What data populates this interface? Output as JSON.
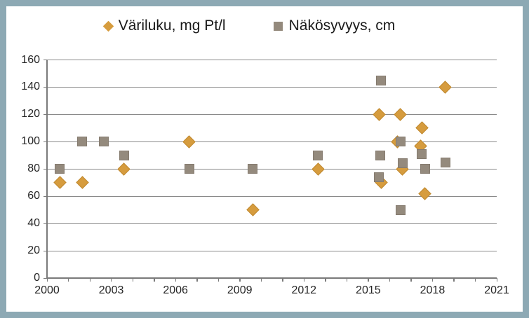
{
  "legend": {
    "items": [
      {
        "label": "Väriluku, mg Pt/l",
        "marker": "diamond",
        "color": "#D69C3E"
      },
      {
        "label": "Näkösyvyys, cm",
        "marker": "square",
        "color": "#948A7D"
      }
    ]
  },
  "axes": {
    "y_ticks": [
      {
        "label": "0",
        "value": 0
      },
      {
        "label": "20",
        "value": 20
      },
      {
        "label": "40",
        "value": 40
      },
      {
        "label": "60",
        "value": 60
      },
      {
        "label": "80",
        "value": 80
      },
      {
        "label": "100",
        "value": 100
      },
      {
        "label": "120",
        "value": 120
      },
      {
        "label": "140",
        "value": 140
      },
      {
        "label": "160",
        "value": 160
      }
    ],
    "x_ticks": [
      {
        "label": "2000",
        "year": 2000
      },
      {
        "label": "2003",
        "year": 2003
      },
      {
        "label": "2006",
        "year": 2006
      },
      {
        "label": "2009",
        "year": 2009
      },
      {
        "label": "2012",
        "year": 2012
      },
      {
        "label": "2015",
        "year": 2015
      },
      {
        "label": "2018",
        "year": 2018
      },
      {
        "label": "2021",
        "year": 2021
      }
    ],
    "x_minor_tick_step_years": 1
  },
  "colors": {
    "frame_border": "#8DA9B4",
    "background": "#FFFFFF",
    "grid_line": "#8A8A8A",
    "axis_line": "#7A7A7A",
    "tick_text": "#262626",
    "legend_text": "#1A1A1A",
    "variluku_fill": "#D69C3E",
    "variluku_edge": "#C0892F",
    "nakosyvyys_fill": "#948A7D",
    "nakosyvyys_edge": "#857B6F"
  },
  "chart_data": {
    "type": "scatter",
    "title": "",
    "legend_position": "top",
    "grid": "horizontal",
    "xlim": [
      2000,
      2021
    ],
    "ylim": [
      0,
      160
    ],
    "x_labeled_tick_step": 3,
    "y_tick_step": 20,
    "series": [
      {
        "name": "Väriluku, mg Pt/l",
        "marker": "diamond",
        "color": "#D69C3E",
        "points": [
          [
            2000.6,
            70
          ],
          [
            2001.65,
            70
          ],
          [
            2003.6,
            80
          ],
          [
            2006.65,
            100
          ],
          [
            2009.6,
            50
          ],
          [
            2012.65,
            80
          ],
          [
            2015.5,
            120
          ],
          [
            2015.6,
            70
          ],
          [
            2016.35,
            100
          ],
          [
            2016.5,
            120
          ],
          [
            2016.6,
            80
          ],
          [
            2017.45,
            97
          ],
          [
            2017.5,
            110
          ],
          [
            2017.65,
            62
          ],
          [
            2018.6,
            140
          ]
        ]
      },
      {
        "name": "Näkösyvyys, cm",
        "marker": "square",
        "color": "#948A7D",
        "points": [
          [
            2000.6,
            80
          ],
          [
            2001.65,
            100
          ],
          [
            2002.65,
            100
          ],
          [
            2003.6,
            90
          ],
          [
            2006.65,
            80
          ],
          [
            2009.6,
            80
          ],
          [
            2012.65,
            90
          ],
          [
            2015.5,
            74
          ],
          [
            2015.55,
            90
          ],
          [
            2015.6,
            145
          ],
          [
            2016.5,
            100
          ],
          [
            2016.5,
            50
          ],
          [
            2016.6,
            84
          ],
          [
            2017.5,
            91
          ],
          [
            2017.65,
            80
          ],
          [
            2018.6,
            85
          ]
        ]
      }
    ]
  }
}
